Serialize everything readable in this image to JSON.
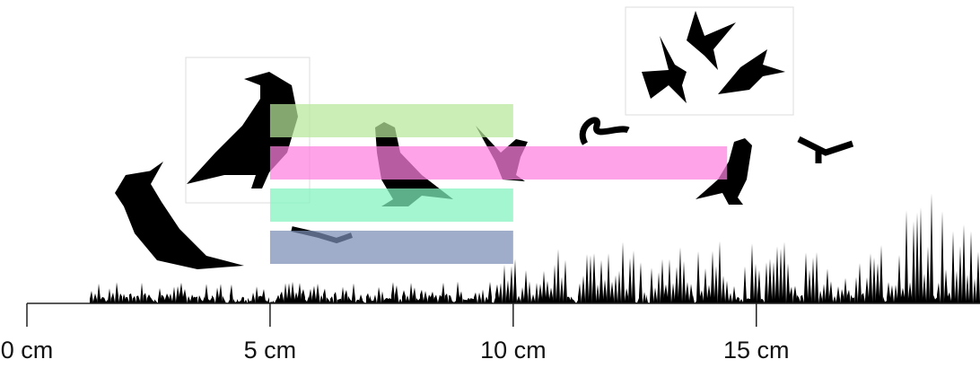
{
  "chart_data": {
    "type": "range_bar",
    "ranges": [
      {
        "start": 5,
        "end": 10,
        "color": "#b5e89a"
      },
      {
        "start": 5,
        "end": 14.4,
        "color": "#ff7fe0"
      },
      {
        "start": 5,
        "end": 10,
        "color": "#7ff2be"
      },
      {
        "start": 5,
        "end": 10,
        "color": "#7b8db5"
      }
    ],
    "xlim": [
      0,
      19.6
    ],
    "xticks": [
      {
        "value": 0,
        "label": "0 cm"
      },
      {
        "value": 5,
        "label": "5 cm"
      },
      {
        "value": 10,
        "label": "10 cm"
      },
      {
        "value": 15,
        "label": "15 cm"
      }
    ]
  }
}
